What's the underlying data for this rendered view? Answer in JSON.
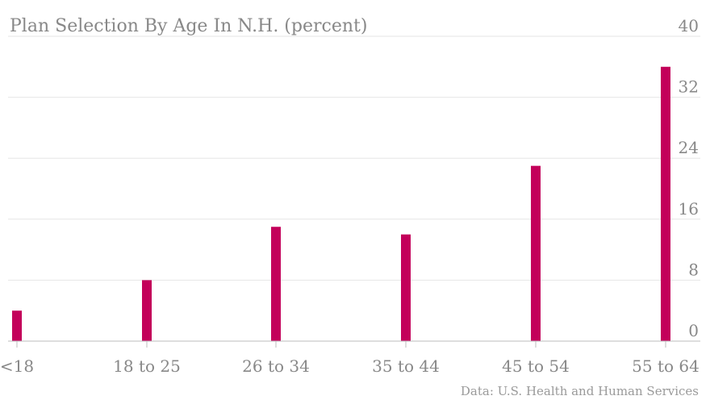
{
  "chart_data": {
    "type": "bar",
    "title": "Plan Selection By Age In N.H. (percent)",
    "source": "Data: U.S. Health and Human Services",
    "categories": [
      "<18",
      "18 to 25",
      "26 to 34",
      "35 to 44",
      "45 to 54",
      "55 to 64"
    ],
    "series": [
      {
        "values": [
          4,
          8,
          15,
          14,
          23,
          36
        ]
      }
    ],
    "ylim": [
      0,
      40
    ],
    "yticks": [
      0,
      8,
      16,
      24,
      32,
      40
    ],
    "grid": true,
    "bar_color": "#c3005a"
  }
}
